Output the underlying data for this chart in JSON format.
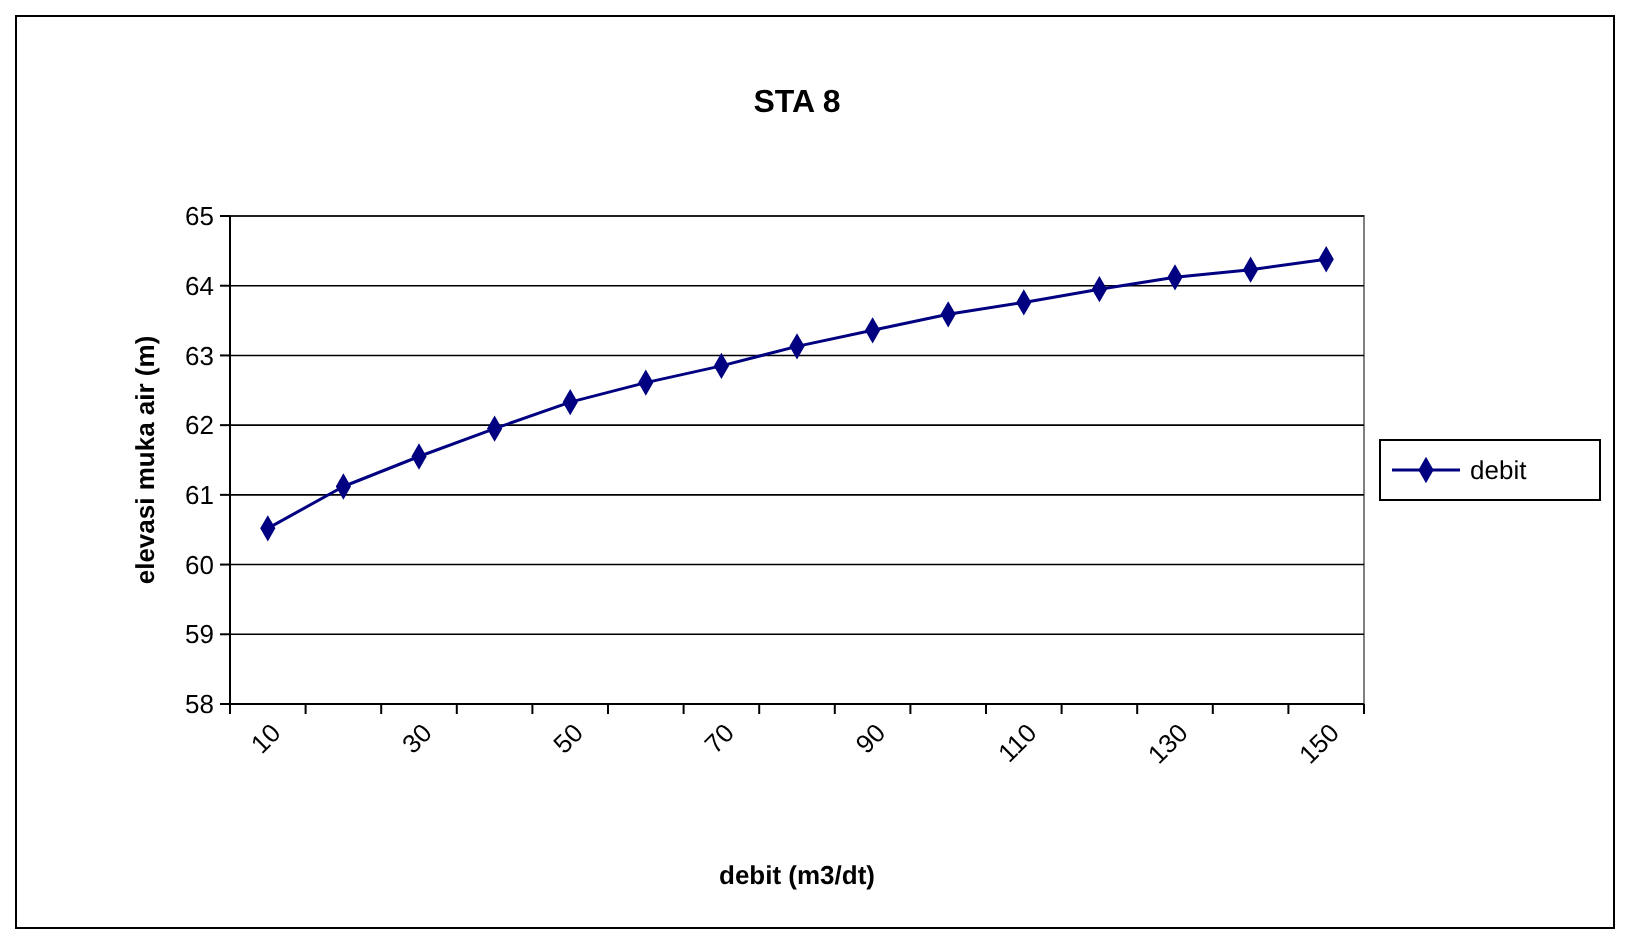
{
  "chart_data": {
    "type": "line",
    "title": "STA 8",
    "xlabel": "debit (m3/dt)",
    "ylabel": "elevasi muka air (m)",
    "categories": [
      "10",
      null,
      "30",
      null,
      "50",
      null,
      "70",
      null,
      "90",
      null,
      "110",
      null,
      "130",
      null,
      "150"
    ],
    "series": [
      {
        "name": "debit",
        "color": "#000080",
        "values": [
          60.52,
          61.12,
          61.55,
          61.95,
          62.33,
          62.61,
          62.85,
          63.13,
          63.36,
          63.59,
          63.76,
          63.95,
          64.12,
          64.23,
          64.38
        ]
      }
    ],
    "ylim": [
      58,
      65
    ],
    "yticks": [
      58,
      59,
      60,
      61,
      62,
      63,
      64,
      65
    ],
    "grid": "y",
    "legend": "right",
    "marker": "diamond",
    "line_style": "solid"
  }
}
